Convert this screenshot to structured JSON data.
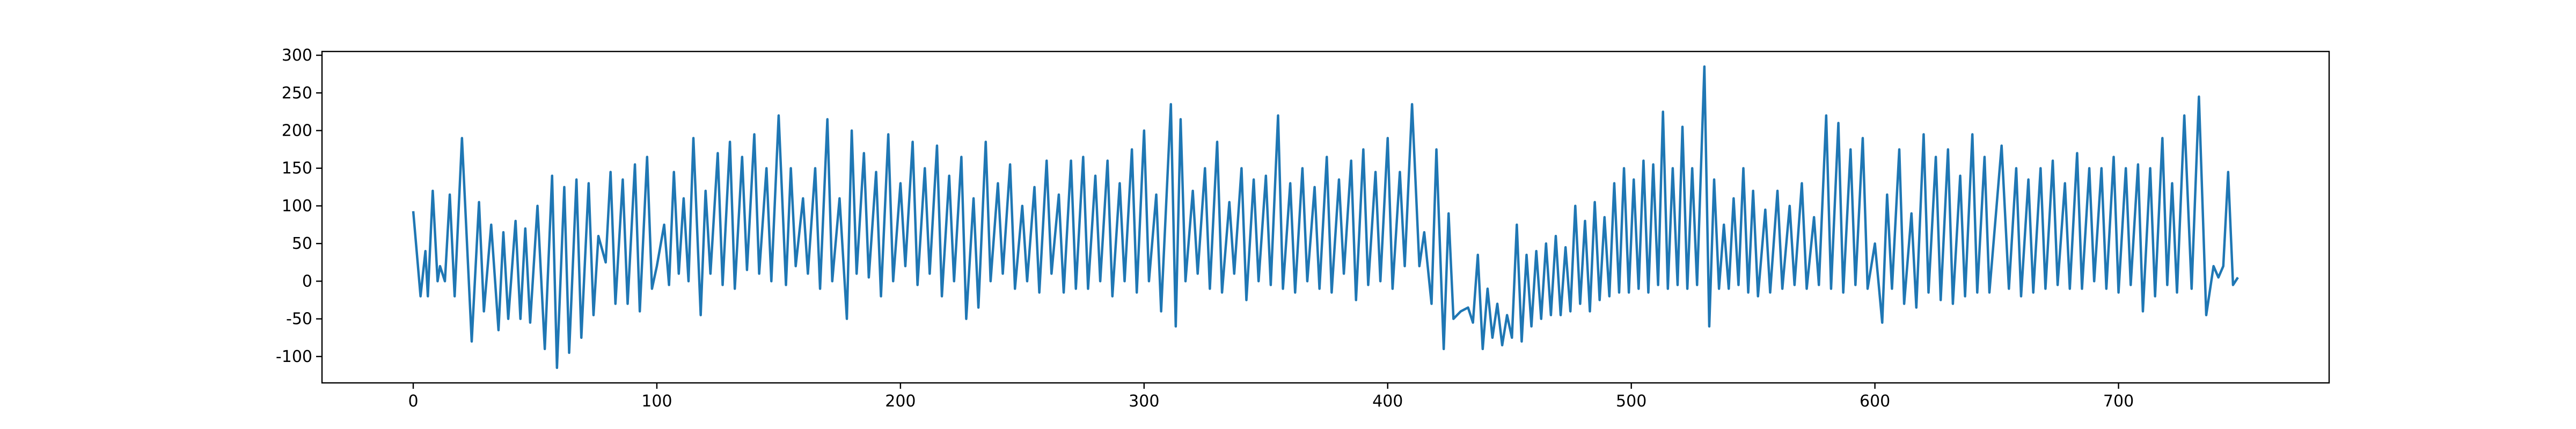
{
  "chart_data": {
    "type": "line",
    "color": "#1f77b4",
    "x": [
      0,
      3,
      5,
      6,
      8,
      10,
      11,
      13,
      15,
      17,
      20,
      24,
      27,
      29,
      32,
      35,
      37,
      39,
      42,
      44,
      46,
      48,
      51,
      54,
      57,
      59,
      62,
      64,
      67,
      69,
      72,
      74,
      76,
      79,
      81,
      83,
      86,
      88,
      91,
      93,
      96,
      98,
      100,
      103,
      105,
      107,
      109,
      111,
      113,
      115,
      118,
      120,
      122,
      125,
      127,
      130,
      132,
      135,
      137,
      140,
      142,
      145,
      147,
      150,
      153,
      155,
      157,
      160,
      162,
      165,
      167,
      170,
      172,
      175,
      178,
      180,
      182,
      185,
      187,
      190,
      192,
      195,
      197,
      200,
      202,
      205,
      207,
      210,
      212,
      215,
      217,
      220,
      222,
      225,
      227,
      230,
      232,
      235,
      237,
      240,
      242,
      245,
      247,
      250,
      252,
      255,
      257,
      260,
      262,
      265,
      267,
      270,
      272,
      275,
      277,
      280,
      282,
      285,
      287,
      290,
      292,
      295,
      297,
      300,
      302,
      305,
      307,
      311,
      313,
      315,
      317,
      320,
      322,
      325,
      327,
      330,
      332,
      335,
      337,
      340,
      342,
      345,
      347,
      350,
      352,
      355,
      357,
      360,
      362,
      365,
      367,
      370,
      372,
      375,
      377,
      380,
      382,
      385,
      387,
      390,
      392,
      395,
      397,
      400,
      402,
      405,
      407,
      410,
      413,
      415,
      418,
      420,
      423,
      425,
      427,
      430,
      433,
      435,
      437,
      439,
      441,
      443,
      445,
      447,
      449,
      451,
      453,
      455,
      457,
      459,
      461,
      463,
      465,
      467,
      469,
      471,
      473,
      475,
      477,
      479,
      481,
      483,
      485,
      487,
      489,
      491,
      493,
      495,
      497,
      499,
      501,
      503,
      505,
      507,
      509,
      511,
      513,
      515,
      517,
      519,
      521,
      523,
      525,
      527,
      530,
      532,
      534,
      536,
      538,
      540,
      542,
      544,
      546,
      548,
      550,
      552,
      555,
      557,
      560,
      562,
      565,
      567,
      570,
      572,
      575,
      577,
      580,
      582,
      585,
      587,
      590,
      592,
      595,
      597,
      600,
      603,
      605,
      607,
      610,
      612,
      615,
      617,
      620,
      622,
      625,
      627,
      630,
      632,
      635,
      637,
      640,
      642,
      645,
      647,
      652,
      655,
      658,
      660,
      663,
      665,
      668,
      670,
      673,
      675,
      678,
      680,
      683,
      685,
      688,
      690,
      693,
      695,
      698,
      700,
      703,
      705,
      708,
      710,
      713,
      715,
      718,
      720,
      722,
      724,
      727,
      730,
      733,
      736,
      739,
      741,
      743,
      745,
      747,
      749
    ],
    "values": [
      93,
      -20,
      40,
      -20,
      120,
      0,
      20,
      0,
      115,
      -20,
      190,
      -80,
      105,
      -40,
      75,
      -65,
      65,
      -50,
      80,
      -50,
      70,
      -55,
      100,
      -90,
      140,
      -115,
      125,
      -95,
      135,
      -75,
      130,
      -45,
      60,
      25,
      145,
      -30,
      135,
      -30,
      155,
      -40,
      165,
      -10,
      20,
      75,
      -5,
      145,
      10,
      110,
      0,
      190,
      -45,
      120,
      10,
      170,
      -5,
      185,
      -10,
      165,
      15,
      195,
      10,
      150,
      0,
      220,
      -5,
      150,
      20,
      110,
      10,
      150,
      -10,
      215,
      0,
      110,
      -50,
      200,
      10,
      170,
      5,
      145,
      -20,
      195,
      0,
      130,
      20,
      185,
      -5,
      150,
      10,
      180,
      -20,
      140,
      0,
      165,
      -50,
      110,
      -35,
      185,
      0,
      130,
      10,
      155,
      -10,
      100,
      0,
      125,
      -15,
      160,
      10,
      115,
      -15,
      160,
      -10,
      165,
      -10,
      140,
      0,
      160,
      -20,
      130,
      0,
      175,
      -15,
      200,
      0,
      115,
      -40,
      235,
      -60,
      215,
      0,
      120,
      10,
      150,
      -10,
      185,
      -15,
      105,
      10,
      150,
      -25,
      135,
      0,
      140,
      -5,
      220,
      -10,
      130,
      -15,
      150,
      0,
      125,
      -10,
      165,
      -15,
      135,
      10,
      160,
      -25,
      175,
      -5,
      145,
      0,
      190,
      -10,
      145,
      20,
      235,
      20,
      65,
      -30,
      175,
      -90,
      90,
      -50,
      -40,
      -35,
      -55,
      35,
      -90,
      -10,
      -75,
      -30,
      -85,
      -45,
      -75,
      75,
      -80,
      35,
      -60,
      40,
      -50,
      50,
      -45,
      60,
      -45,
      45,
      -40,
      100,
      -30,
      80,
      -40,
      105,
      -25,
      85,
      -20,
      130,
      -15,
      150,
      -15,
      135,
      -10,
      160,
      -15,
      155,
      -5,
      225,
      -10,
      150,
      -5,
      205,
      -10,
      150,
      -5,
      285,
      -60,
      135,
      -10,
      75,
      -10,
      110,
      -5,
      150,
      -15,
      120,
      -20,
      95,
      -15,
      120,
      -10,
      100,
      -5,
      130,
      -10,
      85,
      -5,
      220,
      -10,
      210,
      -15,
      175,
      -5,
      190,
      -10,
      50,
      -55,
      115,
      -10,
      175,
      -30,
      90,
      -35,
      195,
      -15,
      165,
      -25,
      175,
      -30,
      140,
      -20,
      195,
      -15,
      165,
      -15,
      180,
      -10,
      150,
      -20,
      135,
      -15,
      150,
      -10,
      160,
      -5,
      130,
      -10,
      170,
      -10,
      150,
      0,
      150,
      -10,
      165,
      -15,
      150,
      -5,
      155,
      -40,
      150,
      -20,
      190,
      -5,
      130,
      -15,
      220,
      -10,
      245,
      -45,
      20,
      5,
      20,
      145,
      -5,
      5
    ],
    "xlim": [
      -37.45,
      786.45
    ],
    "ylim": [
      -135,
      305
    ],
    "xticks": [
      0,
      100,
      200,
      300,
      400,
      500,
      600,
      700
    ],
    "yticks": [
      -100,
      -50,
      0,
      50,
      100,
      150,
      200,
      250,
      300
    ]
  }
}
